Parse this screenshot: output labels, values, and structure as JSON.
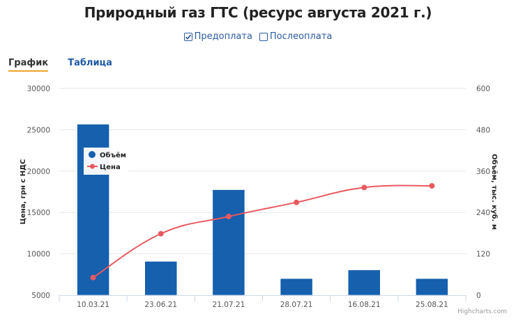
{
  "title": "Природный газ ГТС (ресурс августа 2021 г.)",
  "filters": [
    {
      "label": "Предоплата",
      "checked": true
    },
    {
      "label": "Послеоплата",
      "checked": false
    }
  ],
  "tabs": [
    {
      "label": "График",
      "active": true
    },
    {
      "label": "Таблица",
      "active": false
    }
  ],
  "credit": "Highcharts.com",
  "colors": {
    "bar": "#1660ad",
    "line": "#e8595f",
    "grid": "#e6e6e6",
    "axis": "#ccd6eb",
    "tab_underline": "#f0a42a",
    "link": "#1f5aa5"
  },
  "chart_data": {
    "type": "bar",
    "title": "Природный газ ГТС (ресурс августа 2021 г.)",
    "categories": [
      "10.03.21",
      "23.06.21",
      "21.07.21",
      "28.07.21",
      "16.08.21",
      "25.08.21"
    ],
    "series": [
      {
        "name": "Объём",
        "type": "bar",
        "axis": "right",
        "values": [
          496,
          98,
          306,
          48,
          73,
          48
        ]
      },
      {
        "name": "Цена",
        "type": "line",
        "axis": "left",
        "values": [
          7130,
          12430,
          14510,
          16220,
          18020,
          18220
        ]
      }
    ],
    "ylabel": "Цена, грн с НДС",
    "ylim": [
      5000,
      30000
    ],
    "yticks": [
      "5000",
      "10000",
      "15000",
      "20000",
      "25000",
      "30000"
    ],
    "y2label": "Объём, тыс. куб. м",
    "y2lim": [
      0,
      600
    ],
    "y2ticks": [
      "0",
      "120",
      "240",
      "360",
      "480",
      "600"
    ],
    "legend": {
      "position": "top-left inside",
      "entries": [
        "Объём",
        "Цена"
      ]
    },
    "grid": true
  }
}
